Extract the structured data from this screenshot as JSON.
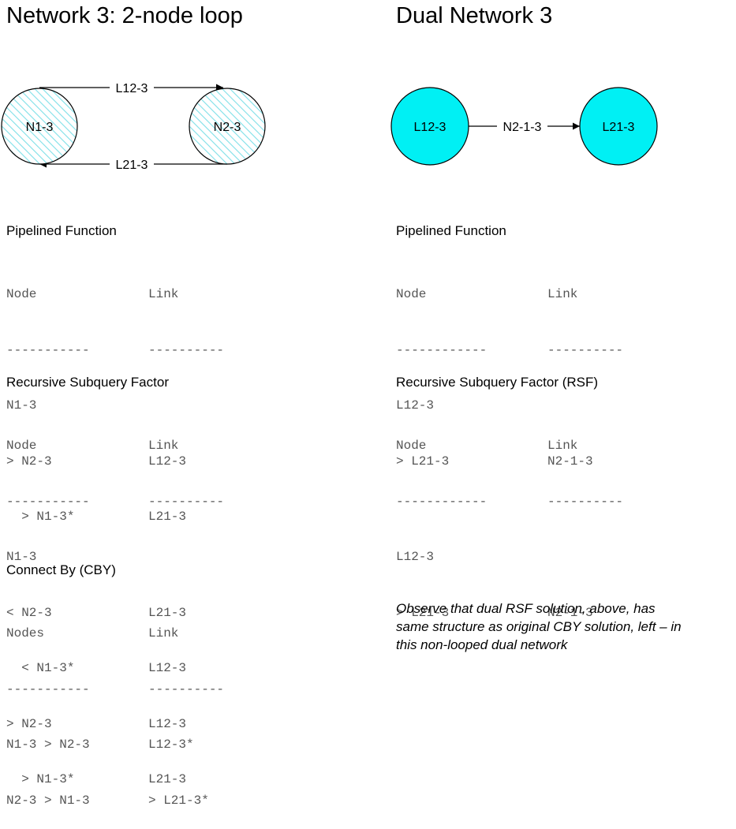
{
  "left": {
    "title": "Network 3: 2-node loop",
    "nodes": [
      "N1-3",
      "N2-3"
    ],
    "links": {
      "top": "L12-3",
      "bottom": "L21-3"
    },
    "sections": [
      {
        "heading": "Pipelined Function",
        "headers": [
          "Node",
          "Link"
        ],
        "underlines": [
          "-----------",
          "----------"
        ],
        "rows": [
          [
            "N1-3",
            ""
          ],
          [
            "> N2-3",
            "L12-3"
          ],
          [
            "  > N1-3*",
            "L21-3"
          ]
        ]
      },
      {
        "heading": "Recursive Subquery Factor",
        "headers": [
          "Node",
          "Link"
        ],
        "underlines": [
          "-----------",
          "----------"
        ],
        "rows": [
          [
            "N1-3",
            ""
          ],
          [
            "< N2-3",
            "L21-3"
          ],
          [
            "  < N1-3*",
            "L12-3"
          ],
          [
            "> N2-3",
            "L12-3"
          ],
          [
            "  > N1-3*",
            "L21-3"
          ]
        ]
      },
      {
        "heading": "Connect By (CBY)",
        "headers": [
          "Nodes",
          "Link"
        ],
        "underlines": [
          "-----------",
          "----------"
        ],
        "rows": [
          [
            "N1-3 > N2-3",
            "L12-3*"
          ],
          [
            "N2-3 > N1-3",
            "> L21-3*"
          ]
        ]
      }
    ]
  },
  "right": {
    "title": "Dual Network 3",
    "nodes": [
      "L12-3",
      "L21-3"
    ],
    "link": "N2-1-3",
    "sections": [
      {
        "heading": "Pipelined Function",
        "headers": [
          "Node",
          "Link"
        ],
        "underlines": [
          "------------",
          "----------"
        ],
        "rows": [
          [
            "L12-3",
            ""
          ],
          [
            "> L21-3",
            "N2-1-3"
          ]
        ]
      },
      {
        "heading": "Recursive Subquery Factor (RSF)",
        "headers": [
          "Node",
          "Link"
        ],
        "underlines": [
          "------------",
          "----------"
        ],
        "rows": [
          [
            "L12-3",
            ""
          ],
          [
            "> L21-3",
            "N2-1-3"
          ]
        ]
      }
    ],
    "note": [
      "Observe that dual RSF solution, above, has",
      "same structure as original CBY solution, left – in",
      "this non-looped dual network"
    ]
  },
  "colors": {
    "hatch": "#7fe0e8",
    "dual_node": "#00f0f4",
    "stroke": "#000000"
  }
}
